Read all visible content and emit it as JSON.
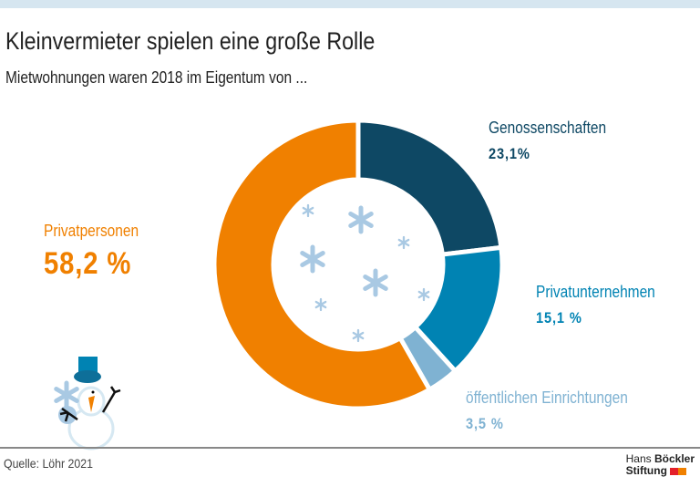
{
  "title": "Kleinvermieter spielen eine große Rolle",
  "subtitle": "Mietwohnungen waren 2018 im Eigentum von ...",
  "source": "Quelle: Löhr 2021",
  "logo": {
    "line1a": "Hans",
    "line1b": "Böckler",
    "line2": "Stiftung",
    "colors": [
      "#e4202a",
      "#f08000"
    ]
  },
  "chart_data": {
    "type": "pie",
    "donut": true,
    "categories": [
      "Genossenschaften",
      "Privatunternehmen",
      "öffentlichen Einrichtungen",
      "Privatpersonen"
    ],
    "values": [
      23.1,
      15.1,
      3.5,
      58.2
    ],
    "labels": [
      "23,1%",
      "15,1 %",
      "3,5 %",
      "58,2 %"
    ],
    "colors": [
      "#0e4864",
      "#0083b3",
      "#7fb2d2",
      "#f08000"
    ],
    "decoration": [
      "snowflake-icons",
      "snowman-icon"
    ]
  }
}
